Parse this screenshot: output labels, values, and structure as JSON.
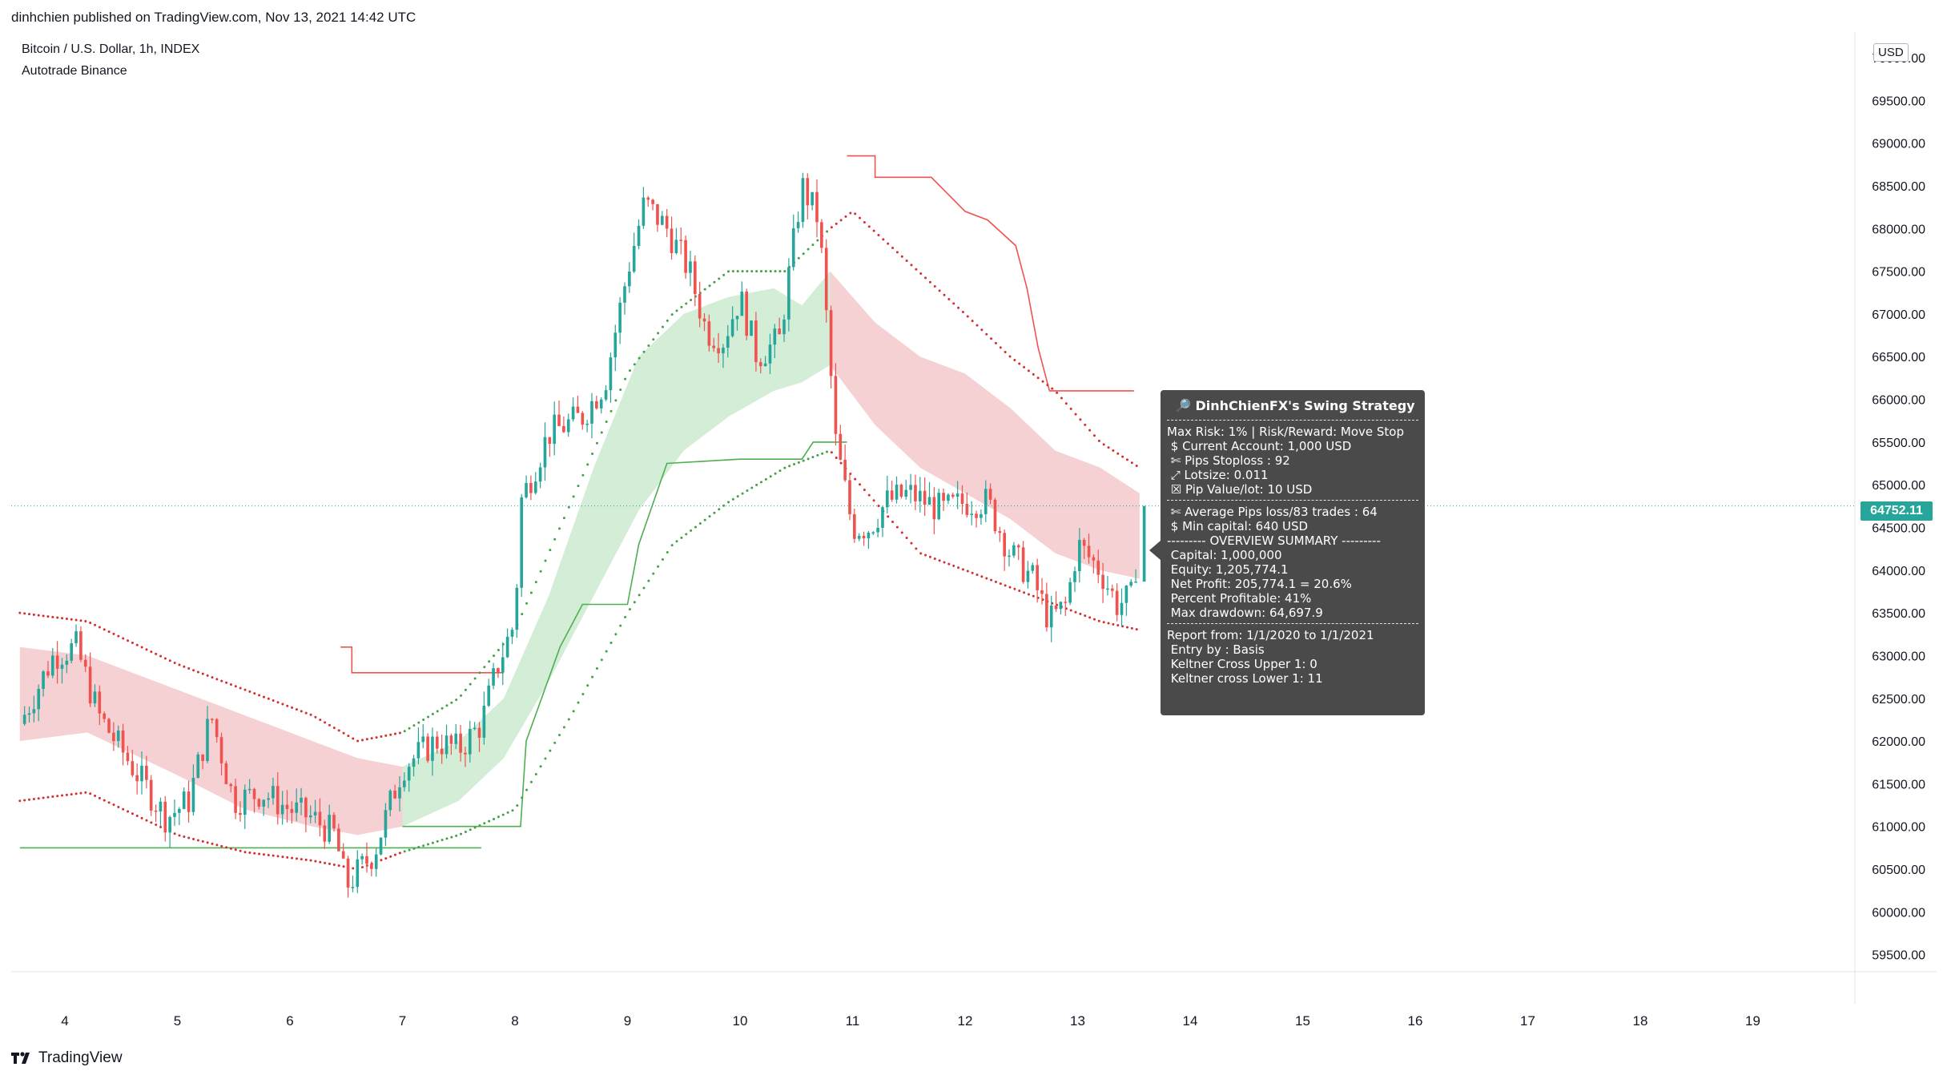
{
  "header": {
    "published": "dinhchien published on TradingView.com, Nov 13, 2021 14:42 UTC"
  },
  "legend": {
    "symbol": "Bitcoin / U.S. Dollar, 1h, INDEX",
    "indicator": "Autotrade Binance"
  },
  "axis": {
    "currency_badge": "USD",
    "last_price_label": "64752.11"
  },
  "tooltip": {
    "icon": "magnifier-icon",
    "title": "DinhChienFX's Swing Strategy",
    "block1": [
      "Max Risk: 1% | Risk/Reward: Move Stop",
      " $ Current Account: 1,000 USD",
      " ✄ Pips Stoploss : 92",
      " ⤢ Lotsize: 0.011",
      " ☒ Pip Value/lot: 10 USD"
    ],
    "block2": [
      " ✄ Average Pips loss/83 trades : 64",
      " $ Min capital: 640 USD",
      "--------- OVERVIEW SUMMARY ---------",
      " Capital: 1,000,000",
      " Equity: 1,205,774.1",
      " Net Profit: 205,774.1 = 20.6%",
      " Percent Profitable: 41%",
      " Max drawdown: 64,697.9"
    ],
    "block3": [
      "Report from: 1/1/2020 to 1/1/2021",
      " Entry by : Basis",
      " Keltner Cross Upper 1: 0",
      " Keltner cross Lower 1: 11"
    ]
  },
  "footer": {
    "brand": "TradingView",
    "logo": "tradingview-logo-icon"
  },
  "colors": {
    "up": "#26a69a",
    "down": "#ef5350",
    "cloud_green": "#d4edd6",
    "cloud_red": "#f5d1d3",
    "line_green": "#4caf50",
    "line_red": "#ef5350",
    "dot_green": "#43a047",
    "dot_red": "#d32f2f"
  },
  "chart_data": {
    "type": "candlestick",
    "title": "Bitcoin / U.S. Dollar, 1h, INDEX",
    "x_tick_labels": [
      "4",
      "5",
      "6",
      "7",
      "8",
      "9",
      "10",
      "11",
      "12",
      "13",
      "14",
      "15",
      "16",
      "17",
      "18",
      "19"
    ],
    "y_tick_labels": [
      "59500.00",
      "60000.00",
      "60500.00",
      "61000.00",
      "61500.00",
      "62000.00",
      "62500.00",
      "63000.00",
      "63500.00",
      "64000.00",
      "64500.00",
      "65000.00",
      "65500.00",
      "66000.00",
      "66500.00",
      "67000.00",
      "67500.00",
      "68000.00",
      "68500.00",
      "69000.00",
      "69500.00",
      "70000.00"
    ],
    "ylim": [
      59300,
      70300
    ],
    "xlim_days": [
      3.6,
      20.0
    ],
    "data_end_day": 13.55,
    "last_price": 64752.11,
    "price_keypoints": [
      [
        3.6,
        62200
      ],
      [
        3.9,
        63000
      ],
      [
        4.1,
        63100
      ],
      [
        4.3,
        62300
      ],
      [
        4.6,
        61700
      ],
      [
        4.9,
        61100
      ],
      [
        5.1,
        61300
      ],
      [
        5.3,
        62300
      ],
      [
        5.5,
        61300
      ],
      [
        5.75,
        61400
      ],
      [
        6.0,
        61200
      ],
      [
        6.2,
        61100
      ],
      [
        6.4,
        60900
      ],
      [
        6.5,
        60300
      ],
      [
        6.75,
        60700
      ],
      [
        7.0,
        61700
      ],
      [
        7.3,
        62000
      ],
      [
        7.5,
        61900
      ],
      [
        7.7,
        62200
      ],
      [
        7.85,
        62900
      ],
      [
        8.0,
        63400
      ],
      [
        8.05,
        64800
      ],
      [
        8.3,
        65600
      ],
      [
        8.6,
        65800
      ],
      [
        8.8,
        66200
      ],
      [
        9.0,
        67500
      ],
      [
        9.15,
        68300
      ],
      [
        9.35,
        68000
      ],
      [
        9.55,
        67500
      ],
      [
        9.7,
        66800
      ],
      [
        9.85,
        66700
      ],
      [
        10.0,
        67200
      ],
      [
        10.15,
        66500
      ],
      [
        10.35,
        66700
      ],
      [
        10.55,
        68500
      ],
      [
        10.7,
        68100
      ],
      [
        10.8,
        66400
      ],
      [
        10.85,
        65500
      ],
      [
        11.0,
        64500
      ],
      [
        11.15,
        64500
      ],
      [
        11.3,
        64800
      ],
      [
        11.5,
        64900
      ],
      [
        11.8,
        64700
      ],
      [
        12.0,
        64800
      ],
      [
        12.2,
        64800
      ],
      [
        12.4,
        64200
      ],
      [
        12.6,
        63900
      ],
      [
        12.75,
        63400
      ],
      [
        12.9,
        63600
      ],
      [
        13.0,
        64300
      ],
      [
        13.2,
        64000
      ],
      [
        13.35,
        63600
      ],
      [
        13.5,
        63700
      ],
      [
        13.55,
        64752
      ]
    ],
    "stop_line_green": [
      [
        3.6,
        60750
      ],
      [
        6.6,
        60750
      ],
      [
        6.6,
        60750
      ],
      [
        7.7,
        60750
      ]
    ],
    "stop_line_green_2": [
      [
        7.0,
        61000
      ],
      [
        8.05,
        61000
      ],
      [
        8.05,
        61000
      ],
      [
        8.1,
        62000
      ],
      [
        8.4,
        63100
      ],
      [
        8.6,
        63600
      ],
      [
        9.0,
        63600
      ],
      [
        9.1,
        64300
      ],
      [
        9.35,
        65250
      ],
      [
        10.0,
        65300
      ],
      [
        10.35,
        65300
      ],
      [
        10.55,
        65300
      ],
      [
        10.65,
        65500
      ],
      [
        10.95,
        65500
      ]
    ],
    "stop_line_red": [
      [
        6.45,
        63100
      ],
      [
        6.55,
        63100
      ],
      [
        6.55,
        62800
      ],
      [
        7.9,
        62800
      ]
    ],
    "stop_line_red_2": [
      [
        10.95,
        68850
      ],
      [
        11.2,
        68850
      ],
      [
        11.2,
        68600
      ],
      [
        11.7,
        68600
      ],
      [
        12.0,
        68200
      ],
      [
        12.2,
        68100
      ],
      [
        12.45,
        67800
      ],
      [
        12.55,
        67300
      ],
      [
        12.65,
        66600
      ],
      [
        12.75,
        66100
      ],
      [
        13.5,
        66100
      ]
    ],
    "cloud_red_1": {
      "upper": [
        [
          3.6,
          63100
        ],
        [
          4.2,
          63000
        ],
        [
          5.0,
          62600
        ],
        [
          5.6,
          62300
        ],
        [
          6.2,
          62000
        ],
        [
          6.6,
          61800
        ],
        [
          7.0,
          61700
        ]
      ],
      "lower": [
        [
          3.6,
          62000
        ],
        [
          4.2,
          62100
        ],
        [
          5.0,
          61600
        ],
        [
          5.6,
          61200
        ],
        [
          6.2,
          61000
        ],
        [
          6.6,
          60900
        ],
        [
          7.0,
          61000
        ]
      ]
    },
    "cloud_green_1": {
      "upper": [
        [
          7.0,
          61700
        ],
        [
          7.5,
          62000
        ],
        [
          7.9,
          62500
        ],
        [
          8.3,
          63700
        ],
        [
          8.7,
          65200
        ],
        [
          9.1,
          66500
        ],
        [
          9.5,
          67000
        ],
        [
          9.9,
          67200
        ],
        [
          10.3,
          67300
        ],
        [
          10.55,
          67100
        ],
        [
          10.8,
          67500
        ]
      ],
      "lower": [
        [
          7.0,
          61000
        ],
        [
          7.5,
          61300
        ],
        [
          7.9,
          61800
        ],
        [
          8.3,
          62700
        ],
        [
          8.7,
          63700
        ],
        [
          9.1,
          64700
        ],
        [
          9.5,
          65400
        ],
        [
          9.9,
          65800
        ],
        [
          10.3,
          66100
        ],
        [
          10.55,
          66200
        ],
        [
          10.8,
          66400
        ]
      ]
    },
    "cloud_red_2": {
      "upper": [
        [
          10.8,
          67500
        ],
        [
          11.2,
          66900
        ],
        [
          11.6,
          66500
        ],
        [
          12.0,
          66300
        ],
        [
          12.4,
          65900
        ],
        [
          12.8,
          65400
        ],
        [
          13.2,
          65200
        ],
        [
          13.55,
          64900
        ]
      ],
      "lower": [
        [
          10.8,
          66400
        ],
        [
          11.2,
          65700
        ],
        [
          11.6,
          65200
        ],
        [
          12.0,
          64900
        ],
        [
          12.4,
          64600
        ],
        [
          12.8,
          64200
        ],
        [
          13.2,
          64000
        ],
        [
          13.55,
          63900
        ]
      ]
    },
    "upper_band_dots": [
      [
        3.6,
        63500
      ],
      [
        4.2,
        63400
      ],
      [
        5.0,
        62900
      ],
      [
        5.6,
        62600
      ],
      [
        6.2,
        62300
      ],
      [
        6.6,
        62000
      ],
      [
        7.0,
        62100
      ],
      [
        7.5,
        62500
      ],
      [
        8.0,
        63300
      ],
      [
        8.5,
        64800
      ],
      [
        9.0,
        66300
      ],
      [
        9.4,
        67000
      ],
      [
        9.9,
        67500
      ],
      [
        10.4,
        67500
      ],
      [
        10.8,
        68000
      ],
      [
        11.0,
        68200
      ],
      [
        11.5,
        67600
      ],
      [
        12.0,
        67000
      ],
      [
        12.4,
        66500
      ],
      [
        12.8,
        66100
      ],
      [
        13.2,
        65500
      ],
      [
        13.55,
        65200
      ]
    ],
    "lower_band_dots": [
      [
        3.6,
        61300
      ],
      [
        4.2,
        61400
      ],
      [
        5.0,
        60900
      ],
      [
        5.6,
        60700
      ],
      [
        6.2,
        60600
      ],
      [
        6.6,
        60500
      ],
      [
        7.0,
        60700
      ],
      [
        7.5,
        60900
      ],
      [
        8.0,
        61200
      ],
      [
        8.5,
        62300
      ],
      [
        9.0,
        63500
      ],
      [
        9.4,
        64300
      ],
      [
        9.9,
        64800
      ],
      [
        10.4,
        65200
      ],
      [
        10.8,
        65400
      ],
      [
        11.2,
        64800
      ],
      [
        11.6,
        64200
      ],
      [
        12.0,
        64000
      ],
      [
        12.4,
        63800
      ],
      [
        12.8,
        63600
      ],
      [
        13.2,
        63400
      ],
      [
        13.55,
        63300
      ]
    ]
  }
}
